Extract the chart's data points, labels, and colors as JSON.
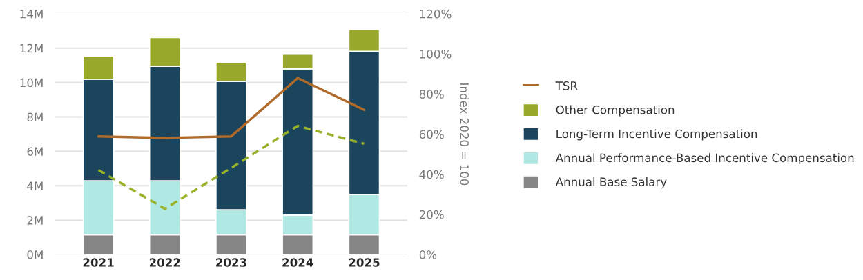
{
  "chart_data": {
    "type": "bar",
    "stacked": true,
    "categories": [
      "2021",
      "2022",
      "2023",
      "2024",
      "2025"
    ],
    "y2label": "Index 2020 = 100",
    "series": [
      {
        "name": "Annual Base Salary",
        "color": "#858585",
        "values": [
          1.15,
          1.15,
          1.15,
          1.15,
          1.15
        ]
      },
      {
        "name": "Annual Performance-Based Incentive Compensation",
        "color": "#b0e8e4",
        "values": [
          3.14,
          3.14,
          1.46,
          1.14,
          2.34
        ]
      },
      {
        "name": "Long-Term Incentive Compensation",
        "color": "#1a455c",
        "values": [
          5.9,
          6.65,
          7.45,
          8.5,
          8.33
        ]
      },
      {
        "name": "Other Compensation",
        "color": "#98a82a",
        "values": [
          1.35,
          1.68,
          1.12,
          0.85,
          1.27
        ]
      },
      {
        "name": "TSR",
        "type": "line",
        "axis": "y2",
        "color": "#b06a2a",
        "line_style": "solid",
        "values": [
          58.9,
          58.1,
          58.9,
          87.9,
          72.1
        ]
      },
      {
        "type": "line",
        "axis": "y2",
        "color": "#98b22a",
        "line_style": "dashed",
        "values": [
          42.1,
          22.8,
          43.2,
          64.1,
          55.2
        ]
      }
    ],
    "ylim": [
      0,
      14
    ],
    "yticks": [
      {
        "value": 0,
        "label": "0M"
      },
      {
        "value": 2,
        "label": "2M"
      },
      {
        "value": 4,
        "label": "4M"
      },
      {
        "value": 6,
        "label": "6M"
      },
      {
        "value": 8,
        "label": "8M"
      },
      {
        "value": 10,
        "label": "10M"
      },
      {
        "value": 12,
        "label": "12M"
      },
      {
        "value": 14,
        "label": "14M"
      }
    ],
    "y2lim": [
      0,
      120
    ],
    "y2ticks": [
      {
        "value": 0,
        "label": "0%"
      },
      {
        "value": 20,
        "label": "20%"
      },
      {
        "value": 40,
        "label": "40%"
      },
      {
        "value": 60,
        "label": "60%"
      },
      {
        "value": 80,
        "label": "80%"
      },
      {
        "value": 100,
        "label": "100%"
      },
      {
        "value": 120,
        "label": "120%"
      }
    ],
    "grid": "y",
    "legend": "right"
  }
}
